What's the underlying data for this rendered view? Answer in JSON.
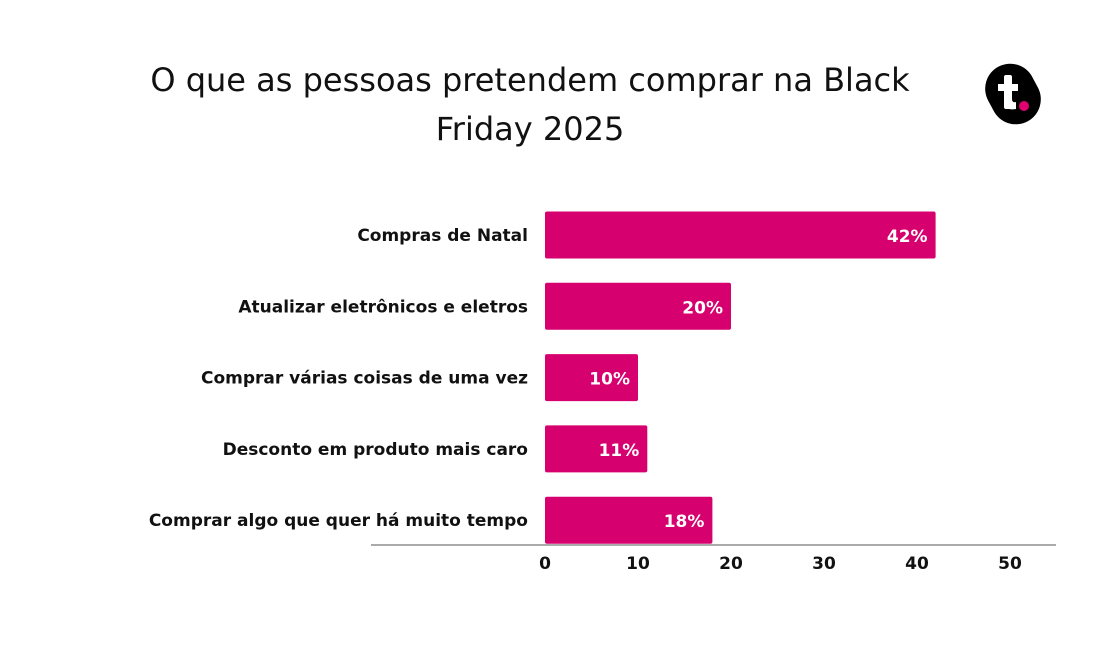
{
  "chart_data": {
    "type": "bar",
    "orientation": "horizontal",
    "title": "O que as pessoas pretendem comprar na Black Friday 2025",
    "title_lines": [
      "O que as pessoas pretendem comprar na Black",
      "Friday 2025"
    ],
    "categories": [
      "Compras de Natal",
      "Atualizar eletrônicos e eletros",
      "Comprar várias coisas de uma vez",
      "Desconto em produto mais caro",
      "Comprar algo que quer há muito tempo"
    ],
    "values": [
      42,
      20,
      10,
      11,
      18
    ],
    "data_labels": [
      "42%",
      "20%",
      "10%",
      "11%",
      "18%"
    ],
    "xlim": [
      0,
      50
    ],
    "xticks": [
      0,
      10,
      20,
      30,
      40,
      50
    ],
    "xlabel": "",
    "ylabel": "",
    "grid": false,
    "bar_color": "#d6006f"
  },
  "logo": {
    "text": "t.",
    "bg": "#000000",
    "dot_color": "#e0006f"
  }
}
